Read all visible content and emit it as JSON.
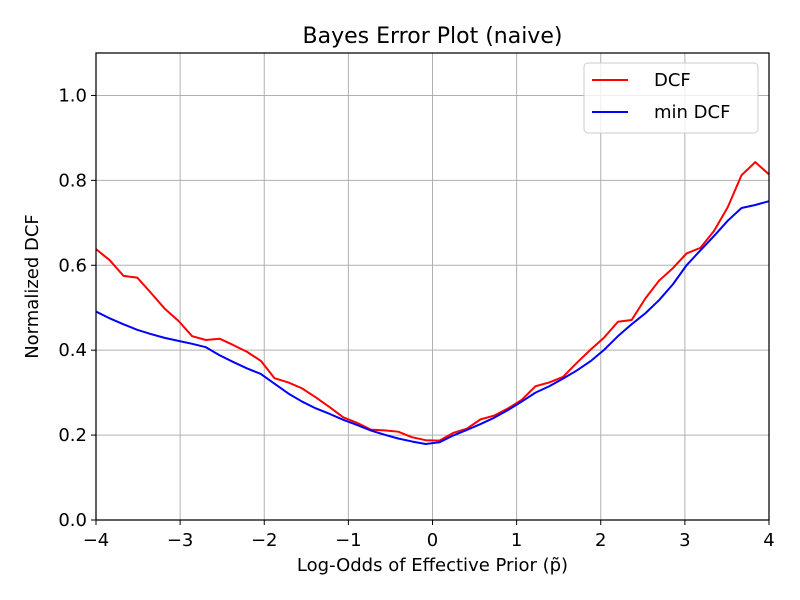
{
  "chart_data": {
    "type": "line",
    "title": "Bayes Error Plot (naive)",
    "xlabel": "Log-Odds of Effective Prior (p̃)",
    "ylabel": "Normalized DCF",
    "xlim": [
      -4,
      4
    ],
    "ylim": [
      0,
      1.1
    ],
    "xticks": [
      -4,
      -3,
      -2,
      -1,
      0,
      1,
      2,
      3,
      4
    ],
    "xtick_labels": [
      "−4",
      "−3",
      "−2",
      "−1",
      "0",
      "1",
      "2",
      "3",
      "4"
    ],
    "yticks": [
      0.0,
      0.2,
      0.4,
      0.6,
      0.8,
      1.0
    ],
    "ytick_labels": [
      "0.0",
      "0.2",
      "0.4",
      "0.6",
      "0.8",
      "1.0"
    ],
    "grid": true,
    "legend_position": "top-right",
    "series": [
      {
        "name": "DCF",
        "color": "#ff0000",
        "x": [
          -4.0,
          -3.837,
          -3.673,
          -3.51,
          -3.347,
          -3.184,
          -3.02,
          -2.857,
          -2.694,
          -2.531,
          -2.367,
          -2.204,
          -2.041,
          -1.878,
          -1.714,
          -1.551,
          -1.388,
          -1.224,
          -1.061,
          -0.898,
          -0.735,
          -0.571,
          -0.408,
          -0.245,
          -0.082,
          0.082,
          0.245,
          0.408,
          0.571,
          0.735,
          0.898,
          1.061,
          1.224,
          1.388,
          1.551,
          1.714,
          1.878,
          2.041,
          2.204,
          2.367,
          2.531,
          2.694,
          2.857,
          3.02,
          3.184,
          3.347,
          3.51,
          3.673,
          3.837,
          4.0
        ],
        "y": [
          0.638,
          0.612,
          0.575,
          0.571,
          0.535,
          0.498,
          0.469,
          0.433,
          0.424,
          0.427,
          0.412,
          0.396,
          0.375,
          0.334,
          0.324,
          0.31,
          0.289,
          0.266,
          0.242,
          0.229,
          0.213,
          0.211,
          0.208,
          0.195,
          0.188,
          0.187,
          0.205,
          0.215,
          0.237,
          0.246,
          0.263,
          0.283,
          0.315,
          0.324,
          0.337,
          0.37,
          0.401,
          0.43,
          0.467,
          0.471,
          0.522,
          0.564,
          0.593,
          0.628,
          0.641,
          0.681,
          0.737,
          0.812,
          0.843,
          0.814
        ]
      },
      {
        "name": "min DCF",
        "color": "#0000ff",
        "x": [
          -4.0,
          -3.837,
          -3.673,
          -3.51,
          -3.347,
          -3.184,
          -3.02,
          -2.857,
          -2.694,
          -2.531,
          -2.367,
          -2.204,
          -2.041,
          -1.878,
          -1.714,
          -1.551,
          -1.388,
          -1.224,
          -1.061,
          -0.898,
          -0.735,
          -0.571,
          -0.408,
          -0.245,
          -0.082,
          0.082,
          0.245,
          0.408,
          0.571,
          0.735,
          0.898,
          1.061,
          1.224,
          1.388,
          1.551,
          1.714,
          1.878,
          2.041,
          2.204,
          2.367,
          2.531,
          2.694,
          2.857,
          3.02,
          3.184,
          3.347,
          3.51,
          3.673,
          3.837,
          4.0
        ],
        "y": [
          0.491,
          0.475,
          0.461,
          0.448,
          0.438,
          0.429,
          0.422,
          0.415,
          0.407,
          0.388,
          0.372,
          0.357,
          0.344,
          0.321,
          0.298,
          0.279,
          0.263,
          0.25,
          0.236,
          0.224,
          0.211,
          0.201,
          0.192,
          0.185,
          0.179,
          0.183,
          0.199,
          0.212,
          0.226,
          0.241,
          0.259,
          0.279,
          0.3,
          0.315,
          0.333,
          0.352,
          0.374,
          0.401,
          0.433,
          0.461,
          0.487,
          0.518,
          0.555,
          0.6,
          0.635,
          0.669,
          0.705,
          0.735,
          0.742,
          0.751
        ]
      }
    ]
  }
}
